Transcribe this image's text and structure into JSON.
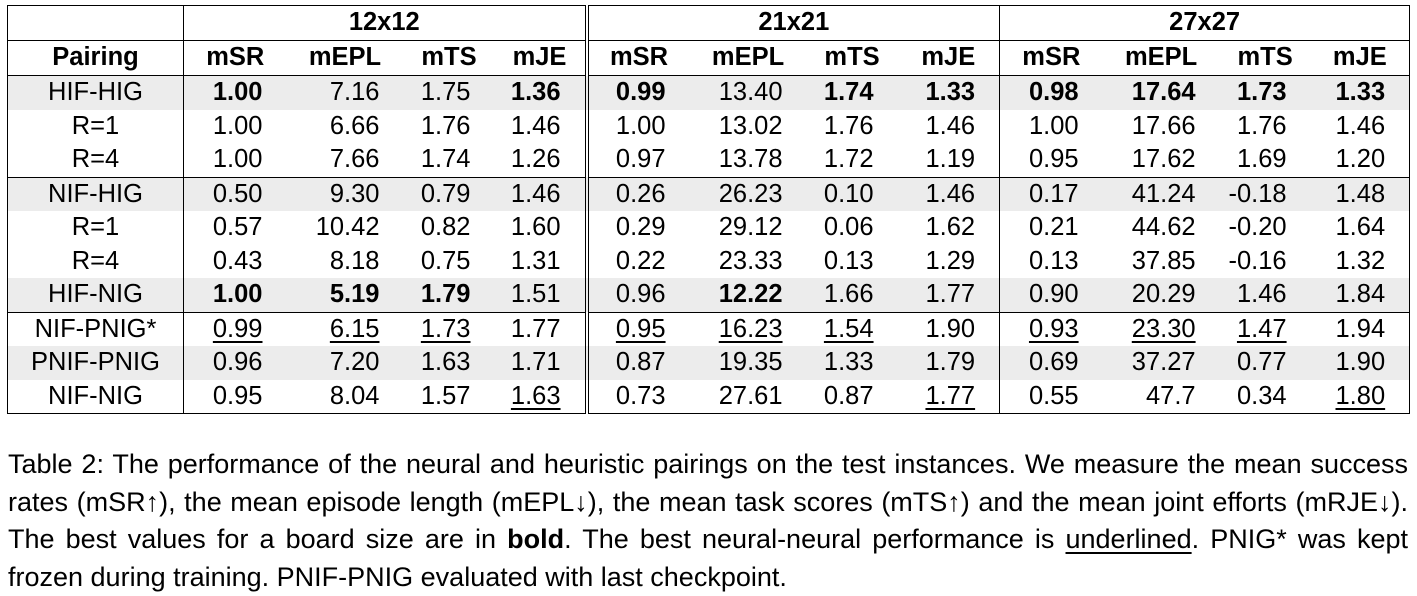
{
  "table": {
    "group_headers": [
      "12x12",
      "21x21",
      "27x27"
    ],
    "pairing_header": "Pairing",
    "metric_headers": [
      "mSR",
      "mEPL",
      "mTS",
      "mJE"
    ],
    "rows": [
      {
        "label": "HIF-HIG",
        "values": [
          "1.00",
          "7.16",
          "1.75",
          "1.36",
          "0.99",
          "13.40",
          "1.74",
          "1.33",
          "0.98",
          "17.64",
          "1.73",
          "1.33"
        ],
        "bold": [
          0,
          3,
          4,
          6,
          7,
          8,
          9,
          10,
          11
        ],
        "underline": [],
        "shade": true,
        "group_end": false
      },
      {
        "label": "R=1",
        "values": [
          "1.00",
          "6.66",
          "1.76",
          "1.46",
          "1.00",
          "13.02",
          "1.76",
          "1.46",
          "1.00",
          "17.66",
          "1.76",
          "1.46"
        ],
        "bold": [],
        "underline": [],
        "shade": false,
        "group_end": false
      },
      {
        "label": "R=4",
        "values": [
          "1.00",
          "7.66",
          "1.74",
          "1.26",
          "0.97",
          "13.78",
          "1.72",
          "1.19",
          "0.95",
          "17.62",
          "1.69",
          "1.20"
        ],
        "bold": [],
        "underline": [],
        "shade": false,
        "group_end": true
      },
      {
        "label": "NIF-HIG",
        "values": [
          "0.50",
          "9.30",
          "0.79",
          "1.46",
          "0.26",
          "26.23",
          "0.10",
          "1.46",
          "0.17",
          "41.24",
          "-0.18",
          "1.48"
        ],
        "bold": [],
        "underline": [],
        "shade": true,
        "group_end": false
      },
      {
        "label": "R=1",
        "values": [
          "0.57",
          "10.42",
          "0.82",
          "1.60",
          "0.29",
          "29.12",
          "0.06",
          "1.62",
          "0.21",
          "44.62",
          "-0.20",
          "1.64"
        ],
        "bold": [],
        "underline": [],
        "shade": false,
        "group_end": false
      },
      {
        "label": "R=4",
        "values": [
          "0.43",
          "8.18",
          "0.75",
          "1.31",
          "0.22",
          "23.33",
          "0.13",
          "1.29",
          "0.13",
          "37.85",
          "-0.16",
          "1.32"
        ],
        "bold": [],
        "underline": [],
        "shade": false,
        "group_end": false
      },
      {
        "label": "HIF-NIG",
        "values": [
          "1.00",
          "5.19",
          "1.79",
          "1.51",
          "0.96",
          "12.22",
          "1.66",
          "1.77",
          "0.90",
          "20.29",
          "1.46",
          "1.84"
        ],
        "bold": [
          0,
          1,
          2,
          5
        ],
        "underline": [],
        "shade": true,
        "group_end": true
      },
      {
        "label": "NIF-PNIG*",
        "values": [
          "0.99",
          "6.15",
          "1.73",
          "1.77",
          "0.95",
          "16.23",
          "1.54",
          "1.90",
          "0.93",
          "23.30",
          "1.47",
          "1.94"
        ],
        "bold": [],
        "underline": [
          0,
          1,
          2,
          4,
          5,
          6,
          8,
          9,
          10
        ],
        "shade": false,
        "group_end": false
      },
      {
        "label": "PNIF-PNIG",
        "values": [
          "0.96",
          "7.20",
          "1.63",
          "1.71",
          "0.87",
          "19.35",
          "1.33",
          "1.79",
          "0.69",
          "37.27",
          "0.77",
          "1.90"
        ],
        "bold": [],
        "underline": [],
        "shade": true,
        "group_end": false
      },
      {
        "label": "NIF-NIG",
        "values": [
          "0.95",
          "8.04",
          "1.57",
          "1.63",
          "0.73",
          "27.61",
          "0.87",
          "1.77",
          "0.55",
          "47.7",
          "0.34",
          "1.80"
        ],
        "bold": [],
        "underline": [
          3,
          7,
          11
        ],
        "shade": false,
        "group_end": false
      }
    ]
  },
  "caption": {
    "part1": "Table 2: The performance of the neural and heuristic pairings on the test instances. We measure the mean success rates (mSR↑), the mean episode length (mEPL↓), the mean task scores (mTS↑) and the mean joint efforts (mRJE↓). The best values for a board size are in ",
    "bold_word": "bold",
    "part2": ". The best neural-neural performance is ",
    "underlined_word": "underlined",
    "part3": ". PNIG* was kept frozen during training. PNIF-PNIG evaluated with last checkpoint."
  }
}
